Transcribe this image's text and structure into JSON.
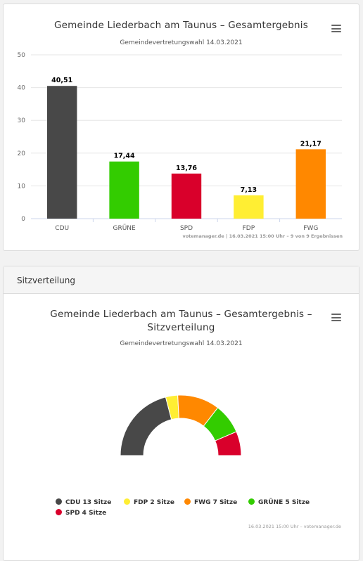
{
  "chart_data": [
    {
      "type": "bar",
      "title": "Gemeinde Liederbach am Taunus – Gesamtergebnis",
      "subtitle": "Gemeindevertretungswahl 14.03.2021",
      "categories": [
        "CDU",
        "GRÜNE",
        "SPD",
        "FDP",
        "FWG"
      ],
      "values": [
        40.51,
        17.44,
        13.76,
        7.13,
        21.17
      ],
      "data_labels": [
        "40,51",
        "17,44",
        "13,76",
        "7,13",
        "21,17"
      ],
      "colors": [
        "#484848",
        "#33cc00",
        "#d9002b",
        "#ffee33",
        "#ff8800"
      ],
      "ylim": [
        0,
        50
      ],
      "yticks": [
        0,
        10,
        20,
        30,
        40,
        50
      ],
      "grid": true,
      "credit": "votemanager.de | 16.03.2021 15:00 Uhr – 9 von 9 Ergebnissen"
    },
    {
      "type": "pie",
      "variant": "parliament-semicircle",
      "title_line1": "Gemeinde Liederbach am Taunus – Gesamtergebnis –",
      "title_line2": "Sitzverteilung",
      "subtitle": "Gemeindevertretungswahl 14.03.2021",
      "slices": [
        {
          "party": "CDU",
          "seats": 13,
          "color": "#484848"
        },
        {
          "party": "FDP",
          "seats": 2,
          "color": "#ffee33"
        },
        {
          "party": "FWG",
          "seats": 7,
          "color": "#ff8800"
        },
        {
          "party": "GRÜNE",
          "seats": 5,
          "color": "#33cc00"
        },
        {
          "party": "SPD",
          "seats": 4,
          "color": "#d9002b"
        }
      ],
      "legend": [
        {
          "label": "CDU 13 Sitze",
          "color": "#484848"
        },
        {
          "label": "FDP 2 Sitze",
          "color": "#ffee33"
        },
        {
          "label": "FWG 7 Sitze",
          "color": "#ff8800"
        },
        {
          "label": "GRÜNE 5 Sitze",
          "color": "#33cc00"
        },
        {
          "label": "SPD 4 Sitze",
          "color": "#d9002b"
        }
      ],
      "legend_placement": "bottom",
      "credit": "16.03.2021 15:00 Uhr – votemanager.de"
    }
  ],
  "seat_panel": {
    "header": "Sitzverteilung"
  }
}
